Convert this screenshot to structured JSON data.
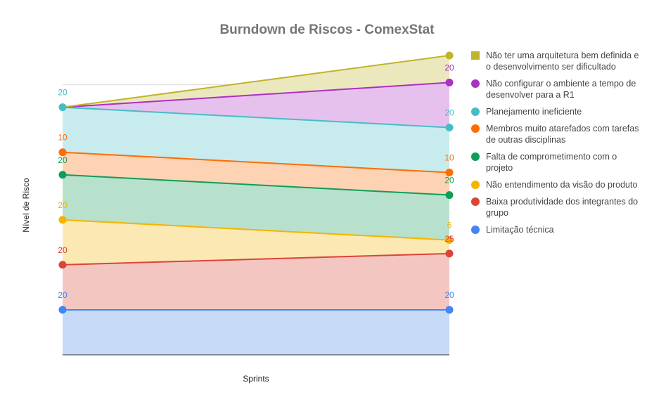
{
  "chart_data": {
    "type": "area",
    "stacked": true,
    "title": "Burndown de Riscos - ComexStat",
    "xlabel": "Sprints",
    "ylabel": "Nível de Risco",
    "categories": [
      "",
      ""
    ],
    "grid": true,
    "legend_position": "right",
    "series": [
      {
        "name": "Limitação técnica",
        "values": [
          20,
          20
        ],
        "labels": [
          "20",
          "20"
        ],
        "color": "#4285f4",
        "fill": "#c6daf8"
      },
      {
        "name": "Baixa produtividade dos integrantes do grupo",
        "values": [
          20,
          25
        ],
        "labels": [
          "20",
          "25"
        ],
        "color": "#db4437",
        "fill": "#f4c6c2"
      },
      {
        "name": "Não entendimento da visão do produto",
        "values": [
          20,
          6
        ],
        "labels": [
          "20",
          "6"
        ],
        "color": "#f4b400",
        "fill": "#fce8b2"
      },
      {
        "name": "Falta de comprometimento com o projeto",
        "values": [
          20,
          20
        ],
        "labels": [
          "20",
          "20"
        ],
        "color": "#0f9d58",
        "fill": "#b7e1cd"
      },
      {
        "name": "Membros muito atarefados com tarefas de outras disciplinas",
        "values": [
          10,
          10
        ],
        "labels": [
          "10",
          "10"
        ],
        "color": "#ff6d00",
        "fill": "#fdd3b3"
      },
      {
        "name": "Planejamento ineficiente",
        "values": [
          20,
          20
        ],
        "labels": [
          "20",
          "20"
        ],
        "color": "#46bdc6",
        "fill": "#c8ebee"
      },
      {
        "name": "Não configurar o ambiente a tempo de desenvolver para a R1",
        "values": [
          0,
          20
        ],
        "labels": [
          "",
          "20"
        ],
        "color": "#ab30c4",
        "fill": "#e6c1ed"
      },
      {
        "name": "Não ter uma arquitetura bem definida e o desenvolvimento ser dificultado",
        "values": [
          0,
          12
        ],
        "labels": [
          "",
          ""
        ],
        "color": "#c0b42c",
        "fill": "#ece8bd"
      }
    ],
    "legend_order": [
      7,
      6,
      5,
      4,
      3,
      2,
      1,
      0
    ]
  }
}
